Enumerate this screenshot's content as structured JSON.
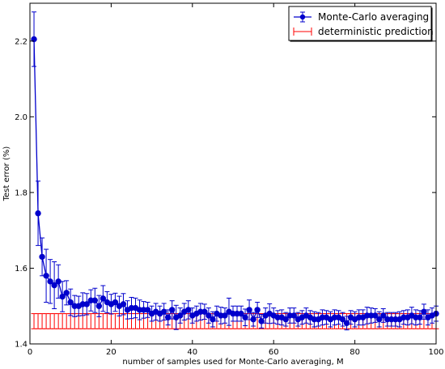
{
  "chart_data": {
    "type": "line",
    "title": "",
    "xlabel": "number of samples used for Monte-Carlo averaging, M",
    "ylabel": "Test error (%)",
    "xlim": [
      0,
      100
    ],
    "ylim": [
      1.4,
      2.3
    ],
    "x_ticks": [
      0,
      20,
      40,
      60,
      80,
      100
    ],
    "y_ticks": [
      1.4,
      1.6,
      1.8,
      2.0,
      2.2
    ],
    "x_tick_labels": [
      "0",
      "20",
      "40",
      "60",
      "80",
      "100"
    ],
    "y_tick_labels": [
      "1.4",
      "1.6",
      "1.8",
      "2.0",
      "2.2"
    ],
    "grid": false,
    "legend_position": "top-right",
    "series": [
      {
        "name": "Monte-Carlo averaging",
        "color": "#0000cc",
        "style": "line-with-markers-and-errorbars",
        "x": [
          1,
          2,
          3,
          4,
          5,
          6,
          7,
          8,
          9,
          10,
          11,
          12,
          13,
          14,
          15,
          16,
          17,
          18,
          19,
          20,
          21,
          22,
          23,
          24,
          25,
          26,
          27,
          28,
          29,
          30,
          31,
          32,
          33,
          34,
          35,
          36,
          37,
          38,
          39,
          40,
          41,
          42,
          43,
          44,
          45,
          46,
          47,
          48,
          49,
          50,
          51,
          52,
          53,
          54,
          55,
          56,
          57,
          58,
          59,
          60,
          61,
          62,
          63,
          64,
          65,
          66,
          67,
          68,
          69,
          70,
          71,
          72,
          73,
          74,
          75,
          76,
          77,
          78,
          79,
          80,
          81,
          82,
          83,
          84,
          85,
          86,
          87,
          88,
          89,
          90,
          91,
          92,
          93,
          94,
          95,
          96,
          97,
          98,
          99,
          100
        ],
        "values": [
          2.205,
          1.745,
          1.63,
          1.58,
          1.565,
          1.555,
          1.565,
          1.525,
          1.535,
          1.51,
          1.5,
          1.5,
          1.505,
          1.505,
          1.515,
          1.515,
          1.5,
          1.52,
          1.51,
          1.505,
          1.51,
          1.5,
          1.505,
          1.49,
          1.495,
          1.495,
          1.49,
          1.49,
          1.49,
          1.48,
          1.485,
          1.48,
          1.485,
          1.47,
          1.49,
          1.47,
          1.475,
          1.485,
          1.49,
          1.475,
          1.48,
          1.485,
          1.485,
          1.475,
          1.465,
          1.48,
          1.475,
          1.475,
          1.485,
          1.48,
          1.48,
          1.48,
          1.47,
          1.49,
          1.465,
          1.49,
          1.46,
          1.475,
          1.48,
          1.475,
          1.47,
          1.47,
          1.465,
          1.475,
          1.475,
          1.465,
          1.47,
          1.475,
          1.47,
          1.465,
          1.465,
          1.47,
          1.47,
          1.465,
          1.47,
          1.47,
          1.465,
          1.455,
          1.47,
          1.465,
          1.47,
          1.47,
          1.475,
          1.475,
          1.475,
          1.465,
          1.475,
          1.465,
          1.465,
          1.465,
          1.465,
          1.47,
          1.47,
          1.475,
          1.47,
          1.47,
          1.485,
          1.47,
          1.475,
          1.48
        ],
        "errors": [
          0.072,
          0.085,
          0.05,
          0.07,
          0.058,
          0.062,
          0.044,
          0.04,
          0.032,
          0.035,
          0.028,
          0.026,
          0.03,
          0.028,
          0.028,
          0.032,
          0.028,
          0.034,
          0.028,
          0.026,
          0.024,
          0.026,
          0.028,
          0.024,
          0.028,
          0.026,
          0.026,
          0.022,
          0.02,
          0.02,
          0.022,
          0.02,
          0.022,
          0.02,
          0.024,
          0.032,
          0.02,
          0.022,
          0.024,
          0.02,
          0.02,
          0.022,
          0.02,
          0.02,
          0.02,
          0.02,
          0.022,
          0.02,
          0.036,
          0.02,
          0.02,
          0.02,
          0.022,
          0.026,
          0.018,
          0.02,
          0.018,
          0.02,
          0.026,
          0.02,
          0.018,
          0.02,
          0.018,
          0.02,
          0.02,
          0.018,
          0.018,
          0.02,
          0.018,
          0.02,
          0.018,
          0.02,
          0.018,
          0.02,
          0.02,
          0.018,
          0.018,
          0.018,
          0.018,
          0.02,
          0.02,
          0.02,
          0.022,
          0.02,
          0.018,
          0.02,
          0.018,
          0.018,
          0.018,
          0.018,
          0.02,
          0.018,
          0.02,
          0.022,
          0.02,
          0.018,
          0.02,
          0.02,
          0.02,
          0.02
        ]
      },
      {
        "name": "deterministic prediction",
        "color": "#ff0000",
        "style": "errorbars-only",
        "value": 1.46,
        "error": 0.02
      }
    ]
  }
}
